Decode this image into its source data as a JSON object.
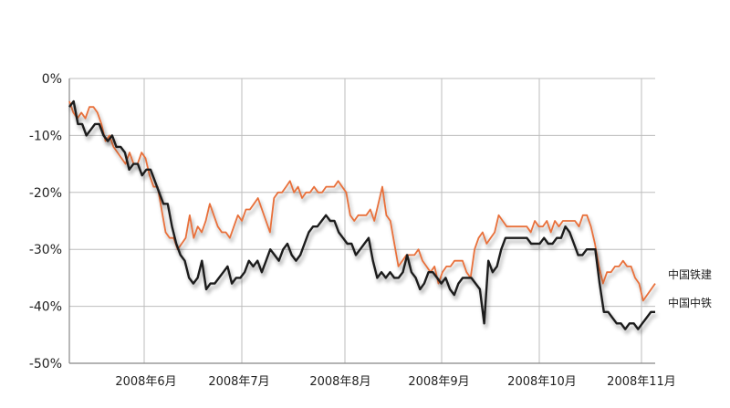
{
  "chart_data": {
    "type": "line",
    "title": "",
    "xlabel": "",
    "ylabel": "",
    "ylim": [
      -50,
      0
    ],
    "y_ticks": [
      0,
      -10,
      -20,
      -30,
      -40,
      -50
    ],
    "y_tick_labels": [
      "0%",
      "-10%",
      "-20%",
      "-30%",
      "-40%",
      "-50%"
    ],
    "x_tick_labels": [
      "2008年6月",
      "2008年7月",
      "2008年8月",
      "2008年9月",
      "2008年10月",
      "2008年11月"
    ],
    "grid": true,
    "legend": "right (labels at line ends)",
    "series": [
      {
        "name": "中国铁建",
        "color": "#e8703a",
        "values": [
          -4,
          -6,
          -7,
          -6,
          -7,
          -5,
          -5,
          -6,
          -8,
          -11,
          -10,
          -12,
          -13,
          -14,
          -15,
          -13,
          -15,
          -15,
          -13,
          -14,
          -17,
          -19,
          -19,
          -23,
          -27,
          -28,
          -28,
          -30,
          -29,
          -28,
          -24,
          -28,
          -26,
          -27,
          -25,
          -22,
          -24,
          -26,
          -27,
          -27,
          -28,
          -26,
          -24,
          -25,
          -23,
          -23,
          -22,
          -21,
          -23,
          -25,
          -27,
          -21,
          -20,
          -20,
          -19,
          -18,
          -20,
          -19,
          -21,
          -20,
          -20,
          -19,
          -20,
          -20,
          -19,
          -19,
          -19,
          -18,
          -19,
          -20,
          -24,
          -25,
          -24,
          -24,
          -24,
          -23,
          -25,
          -22,
          -19,
          -24,
          -25,
          -29,
          -33,
          -32,
          -31,
          -31,
          -31,
          -30,
          -32,
          -33,
          -34,
          -33,
          -36,
          -34,
          -33,
          -33,
          -32,
          -32,
          -32,
          -34,
          -35,
          -30,
          -28,
          -27,
          -29,
          -28,
          -27,
          -24,
          -25,
          -26,
          -26,
          -26,
          -26,
          -26,
          -26,
          -27,
          -25,
          -26,
          -26,
          -25,
          -27,
          -25,
          -26,
          -25,
          -25,
          -25,
          -25,
          -26,
          -24,
          -24,
          -26,
          -29,
          -33,
          -36,
          -34,
          -34,
          -33,
          -33,
          -32,
          -33,
          -33,
          -35,
          -36,
          -39,
          -38,
          -37,
          -36
        ],
        "end_label": "中国铁建"
      },
      {
        "name": "中国中铁",
        "color": "#1a1a1a",
        "values": [
          -5,
          -4,
          -8,
          -8,
          -10,
          -9,
          -8,
          -8,
          -10,
          -11,
          -10,
          -12,
          -12,
          -13,
          -16,
          -15,
          -15,
          -17,
          -16,
          -16,
          -18,
          -20,
          -22,
          -22,
          -26,
          -29,
          -31,
          -32,
          -35,
          -36,
          -35,
          -32,
          -37,
          -36,
          -36,
          -35,
          -34,
          -33,
          -36,
          -35,
          -35,
          -34,
          -32,
          -33,
          -32,
          -34,
          -32,
          -30,
          -31,
          -32,
          -30,
          -29,
          -31,
          -32,
          -31,
          -29,
          -27,
          -26,
          -26,
          -25,
          -24,
          -25,
          -25,
          -27,
          -28,
          -29,
          -29,
          -31,
          -30,
          -29,
          -28,
          -32,
          -35,
          -34,
          -35,
          -34,
          -35,
          -35,
          -34,
          -31,
          -34,
          -35,
          -37,
          -36,
          -34,
          -34,
          -35,
          -36,
          -35,
          -37,
          -38,
          -36,
          -35,
          -35,
          -35,
          -36,
          -37,
          -43,
          -32,
          -34,
          -33,
          -30,
          -28,
          -28,
          -28,
          -28,
          -28,
          -28,
          -29,
          -29,
          -29,
          -28,
          -29,
          -29,
          -28,
          -28,
          -26,
          -27,
          -29,
          -31,
          -31,
          -30,
          -30,
          -30,
          -36,
          -41,
          -41,
          -42,
          -43,
          -43,
          -44,
          -43,
          -43,
          -44,
          -43,
          -42,
          -41,
          -41
        ],
        "end_label": "中国中铁"
      }
    ]
  }
}
